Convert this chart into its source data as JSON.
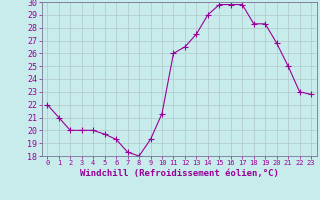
{
  "x": [
    0,
    1,
    2,
    3,
    4,
    5,
    6,
    7,
    8,
    9,
    10,
    11,
    12,
    13,
    14,
    15,
    16,
    17,
    18,
    19,
    20,
    21,
    22,
    23
  ],
  "y": [
    22,
    21,
    20,
    20,
    20,
    19.7,
    19.3,
    18.3,
    18,
    19.3,
    21.3,
    26,
    26.5,
    27.5,
    29,
    29.8,
    29.8,
    29.8,
    28.3,
    28.3,
    26.8,
    25,
    23,
    22.8
  ],
  "line_color": "#990099",
  "marker_color": "#990099",
  "bg_color": "#c8ecec",
  "grid_color": "#b0c8c8",
  "spine_color": "#777799",
  "tick_color": "#990099",
  "xlabel": "Windchill (Refroidissement éolien,°C)",
  "ylim": [
    18,
    30
  ],
  "xlim_min": -0.5,
  "xlim_max": 23.5,
  "yticks": [
    18,
    19,
    20,
    21,
    22,
    23,
    24,
    25,
    26,
    27,
    28,
    29,
    30
  ],
  "xticks": [
    0,
    1,
    2,
    3,
    4,
    5,
    6,
    7,
    8,
    9,
    10,
    11,
    12,
    13,
    14,
    15,
    16,
    17,
    18,
    19,
    20,
    21,
    22,
    23
  ],
  "xlabel_fontsize": 6.5,
  "ytick_fontsize": 6,
  "xtick_fontsize": 5,
  "marker_size": 2.5,
  "line_width": 0.8
}
